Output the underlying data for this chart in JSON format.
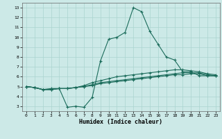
{
  "xlabel": "Humidex (Indice chaleur)",
  "bg_color": "#cce9e7",
  "grid_color": "#aad4d0",
  "line_color": "#1a6b5a",
  "xlim": [
    -0.5,
    23.5
  ],
  "ylim": [
    2.5,
    13.5
  ],
  "xticks": [
    0,
    1,
    2,
    3,
    4,
    5,
    6,
    7,
    8,
    9,
    10,
    11,
    12,
    13,
    14,
    15,
    16,
    17,
    18,
    19,
    20,
    21,
    22,
    23
  ],
  "yticks": [
    3,
    4,
    5,
    6,
    7,
    8,
    9,
    10,
    11,
    12,
    13
  ],
  "line1_x": [
    0,
    1,
    2,
    3,
    4,
    5,
    6,
    7,
    8,
    9,
    10,
    11,
    12,
    13,
    14,
    15,
    16,
    17,
    18,
    19,
    20,
    21,
    22,
    23
  ],
  "line1_y": [
    5.0,
    4.9,
    4.7,
    4.8,
    4.8,
    2.9,
    3.0,
    2.9,
    3.9,
    7.6,
    9.8,
    10.0,
    10.5,
    13.0,
    12.6,
    10.6,
    9.3,
    8.0,
    7.7,
    6.5,
    6.5,
    6.1,
    6.1,
    6.1
  ],
  "line2_x": [
    0,
    1,
    2,
    3,
    4,
    5,
    6,
    7,
    8,
    9,
    10,
    11,
    12,
    13,
    14,
    15,
    16,
    17,
    18,
    19,
    20,
    21,
    22,
    23
  ],
  "line2_y": [
    5.0,
    4.9,
    4.7,
    4.7,
    4.8,
    4.8,
    4.9,
    5.1,
    5.4,
    5.6,
    5.8,
    6.0,
    6.1,
    6.2,
    6.3,
    6.4,
    6.5,
    6.6,
    6.7,
    6.7,
    6.6,
    6.5,
    6.3,
    6.2
  ],
  "line3_x": [
    0,
    1,
    2,
    3,
    4,
    5,
    6,
    7,
    8,
    9,
    10,
    11,
    12,
    13,
    14,
    15,
    16,
    17,
    18,
    19,
    20,
    21,
    22,
    23
  ],
  "line3_y": [
    5.0,
    4.9,
    4.7,
    4.7,
    4.8,
    4.8,
    4.9,
    5.0,
    5.2,
    5.4,
    5.5,
    5.6,
    5.7,
    5.8,
    5.9,
    6.0,
    6.1,
    6.2,
    6.3,
    6.4,
    6.4,
    6.4,
    6.2,
    6.1
  ],
  "line4_x": [
    0,
    1,
    2,
    3,
    4,
    5,
    6,
    7,
    8,
    9,
    10,
    11,
    12,
    13,
    14,
    15,
    16,
    17,
    18,
    19,
    20,
    21,
    22,
    23
  ],
  "line4_y": [
    5.0,
    4.9,
    4.7,
    4.7,
    4.8,
    4.8,
    4.9,
    5.0,
    5.1,
    5.3,
    5.4,
    5.5,
    5.6,
    5.7,
    5.8,
    5.9,
    6.0,
    6.1,
    6.2,
    6.2,
    6.3,
    6.3,
    6.1,
    6.1
  ]
}
